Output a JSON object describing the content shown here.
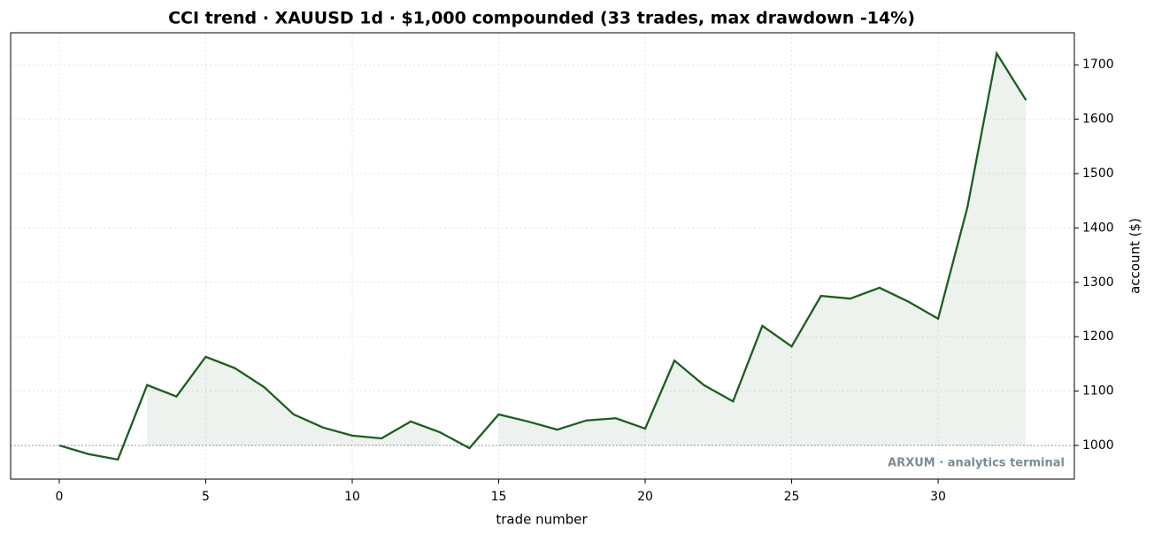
{
  "chart_data": {
    "type": "line",
    "title": "CCI trend · XAUUSD 1d · $1,000 compounded (33 trades, max drawdown -14%)",
    "x_label": "trade number",
    "y_label": "account ($)",
    "annotation": "ARXUM · analytics terminal",
    "x": [
      0,
      1,
      2,
      3,
      4,
      5,
      6,
      7,
      8,
      9,
      10,
      11,
      12,
      13,
      14,
      15,
      16,
      17,
      18,
      19,
      20,
      21,
      22,
      23,
      24,
      25,
      26,
      27,
      28,
      29,
      30,
      31,
      32,
      33
    ],
    "series": [
      {
        "name": "account",
        "color": "#1b5e20",
        "values": [
          1000,
          984,
          974,
          1111,
          1090,
          1163,
          1142,
          1107,
          1057,
          1033,
          1018,
          1013,
          1044,
          1024,
          995,
          1057,
          1044,
          1029,
          1046,
          1050,
          1031,
          1156,
          1111,
          1081,
          1220,
          1182,
          1275,
          1270,
          1290,
          1264,
          1233,
          1438,
          1721,
          1635
        ]
      }
    ],
    "baseline": 1000,
    "xlim": [
      -1.66,
      34.65
    ],
    "ylim": [
      938,
      1759
    ],
    "xticks": [
      0,
      5,
      10,
      15,
      20,
      25,
      30
    ],
    "yticks": [
      1000,
      1100,
      1200,
      1300,
      1400,
      1500,
      1600,
      1700
    ],
    "grid": true,
    "y_axis_side": "right"
  }
}
